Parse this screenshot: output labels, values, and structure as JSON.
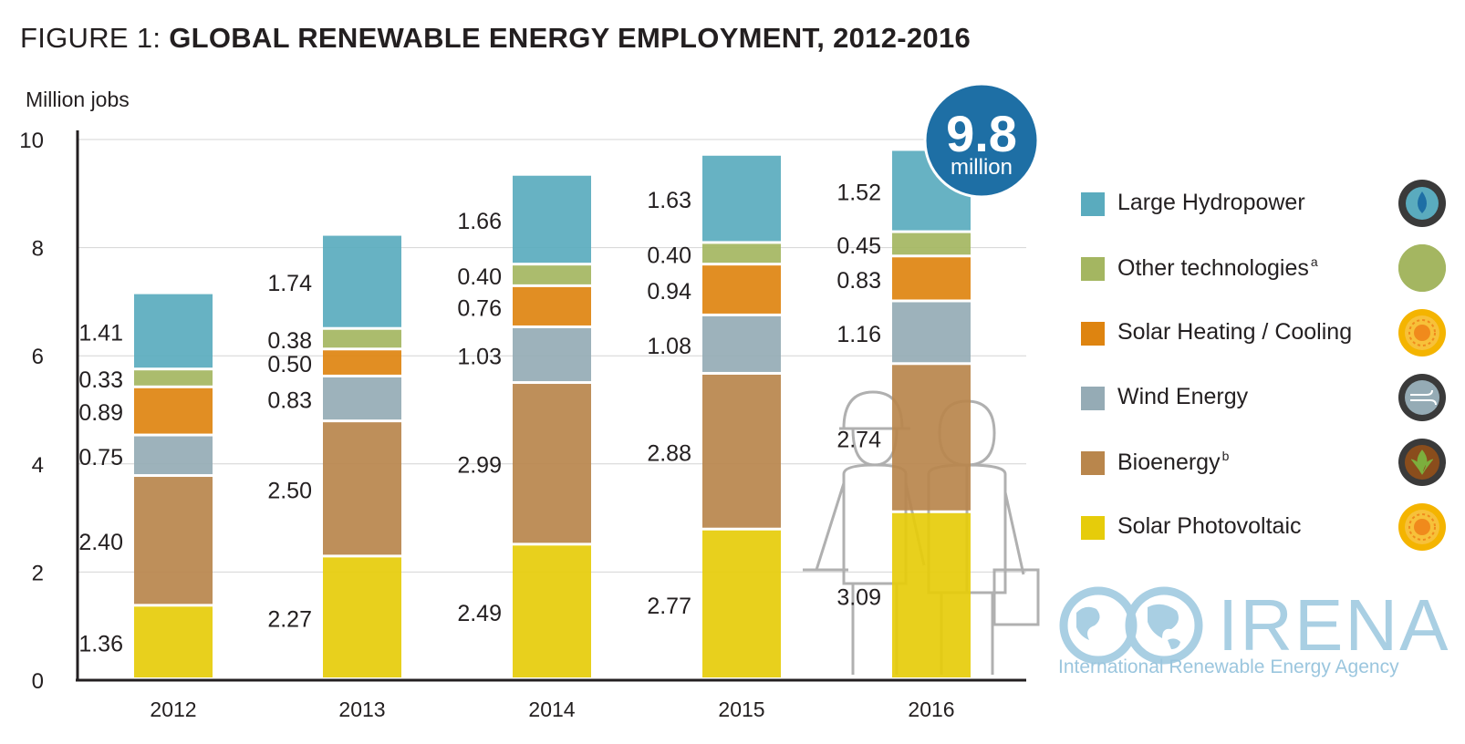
{
  "title": {
    "prefix": "FIGURE 1:",
    "main": "GLOBAL RENEWABLE ENERGY EMPLOYMENT, 2012-2016"
  },
  "badge": {
    "value": "9.8",
    "unit": "million"
  },
  "legend": [
    {
      "key": "hydro",
      "label": "Large Hydropower",
      "sup": "",
      "color": "#5aabbe",
      "icon": "water-drop-icon"
    },
    {
      "key": "other",
      "label": "Other technologies",
      "sup": "a",
      "color": "#a4b661",
      "icon": "green-circle-icon"
    },
    {
      "key": "heat",
      "label": "Solar Heating / Cooling",
      "sup": "",
      "color": "#de8410",
      "icon": "sun-icon"
    },
    {
      "key": "wind",
      "label": "Wind Energy",
      "sup": "",
      "color": "#95abb5",
      "icon": "wind-icon"
    },
    {
      "key": "bio",
      "label": "Bioenergy",
      "sup": "b",
      "color": "#b9864c",
      "icon": "leaf-icon"
    },
    {
      "key": "pv",
      "label": "Solar Photovoltaic",
      "sup": "",
      "color": "#e6cc0a",
      "icon": "sun-icon"
    }
  ],
  "logo": {
    "name": "IRENA",
    "tagline": "International Renewable Energy Agency"
  },
  "chart_data": {
    "type": "bar",
    "stacked": true,
    "title": "GLOBAL RENEWABLE ENERGY EMPLOYMENT, 2012-2016",
    "ylabel": "Million jobs",
    "xlabel": "",
    "ylim": [
      0,
      10
    ],
    "yticks": [
      0,
      2,
      4,
      6,
      8,
      10
    ],
    "grid": true,
    "legend_position": "right",
    "categories": [
      "2012",
      "2013",
      "2014",
      "2015",
      "2016"
    ],
    "series": [
      {
        "name": "Solar Photovoltaic",
        "values": [
          1.36,
          2.27,
          2.49,
          2.77,
          3.09
        ],
        "labels": [
          "1.36",
          "2.27",
          "2.49",
          "2.77",
          "3.09"
        ],
        "color": "#e6cc0a"
      },
      {
        "name": "Bioenergy",
        "values": [
          2.4,
          2.5,
          2.99,
          2.88,
          2.74
        ],
        "labels": [
          "2.40",
          "2.50",
          "2.99",
          "2.88",
          "2.74"
        ],
        "color": "#b9864c"
      },
      {
        "name": "Wind Energy",
        "values": [
          0.75,
          0.83,
          1.03,
          1.08,
          1.16
        ],
        "labels": [
          "0.75",
          "0.83",
          "1.03",
          "1.08",
          "1.16"
        ],
        "color": "#95abb5"
      },
      {
        "name": "Solar Heating / Cooling",
        "values": [
          0.89,
          0.5,
          0.76,
          0.94,
          0.83
        ],
        "labels": [
          "0.89",
          "0.50",
          "0.76",
          "0.94",
          "0.83"
        ],
        "color": "#de8410"
      },
      {
        "name": "Other technologies",
        "values": [
          0.33,
          0.38,
          0.4,
          0.4,
          0.45
        ],
        "labels": [
          "0.33",
          "0.38",
          "0.40",
          "0.40",
          "0.45"
        ],
        "color": "#a4b661"
      },
      {
        "name": "Large Hydropower",
        "values": [
          1.41,
          1.74,
          1.66,
          1.63,
          1.52
        ],
        "labels": [
          "1.41",
          "1.74",
          "1.66",
          "1.63",
          "1.52"
        ],
        "color": "#5aabbe"
      }
    ]
  }
}
